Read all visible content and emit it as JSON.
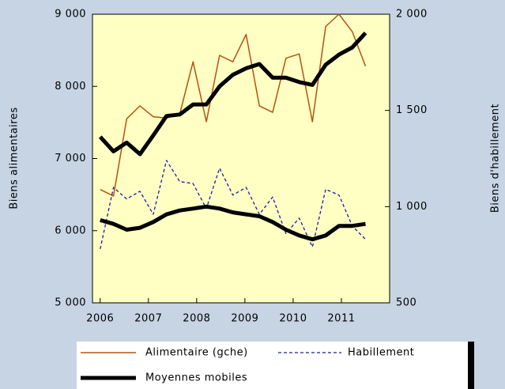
{
  "chart_data": {
    "type": "line",
    "ylabel": "Biens alimentaires",
    "y2label": "Biens d'habillement",
    "x": [
      2006.0,
      2006.275,
      2006.55,
      2006.825,
      2007.1,
      2007.375,
      2007.65,
      2007.925,
      2008.2,
      2008.475,
      2008.75,
      2009.025,
      2009.3,
      2009.575,
      2009.85,
      2010.125,
      2010.4,
      2010.675,
      2010.95,
      2011.225,
      2011.5
    ],
    "series": [
      {
        "name": "Alimentaire (gche)",
        "color": "#b5520f",
        "width": 1.5,
        "dash": "none",
        "axis": "y",
        "values": [
          6570,
          6480,
          7550,
          7730,
          7580,
          7560,
          7620,
          8340,
          7510,
          8430,
          8340,
          8720,
          7730,
          7640,
          8390,
          8450,
          7510,
          8830,
          9000,
          8760,
          8280
        ]
      },
      {
        "name": "Habillement",
        "color": "#1a1aa8",
        "width": 1.3,
        "dash": "4,3",
        "axis": "y2",
        "values": [
          780,
          1100,
          1040,
          1080,
          960,
          1240,
          1130,
          1120,
          990,
          1200,
          1060,
          1100,
          960,
          1050,
          860,
          940,
          790,
          1090,
          1060,
          900,
          830
        ]
      },
      {
        "name": "Moyennes mobiles",
        "color": "#000000",
        "width": 5,
        "dash": "none",
        "axis": "y",
        "values": [
          7300,
          7100,
          7220,
          7060,
          7320,
          7590,
          7610,
          7750,
          7750,
          8000,
          8160,
          8250,
          8310,
          8120,
          8120,
          8060,
          8020,
          8300,
          8440,
          8540,
          8740
        ]
      },
      {
        "color": "#000000",
        "width": 5,
        "dash": "none",
        "axis": "y2",
        "values": [
          930,
          910,
          880,
          890,
          920,
          960,
          980,
          990,
          1000,
          990,
          970,
          960,
          950,
          920,
          880,
          850,
          830,
          850,
          900,
          900,
          910
        ]
      }
    ],
    "xlim": [
      2005.84,
      2012.0
    ],
    "xticks": [
      2006,
      2007,
      2008,
      2009,
      2010,
      2011
    ],
    "ylim": [
      5000,
      9000
    ],
    "yticks": [
      {
        "value": 5000,
        "label": "5 000"
      },
      {
        "value": 6000,
        "label": "6 000"
      },
      {
        "value": 7000,
        "label": "7 000"
      },
      {
        "value": 8000,
        "label": "8 000"
      },
      {
        "value": 9000,
        "label": "9 000"
      }
    ],
    "y2lim": [
      500,
      2000
    ],
    "y2ticks": [
      500,
      {
        "value": 1000,
        "label": "1 000"
      },
      {
        "value": 1500,
        "label": "1 500"
      },
      {
        "value": 2000,
        "label": "2 000"
      }
    ],
    "grid": false
  }
}
